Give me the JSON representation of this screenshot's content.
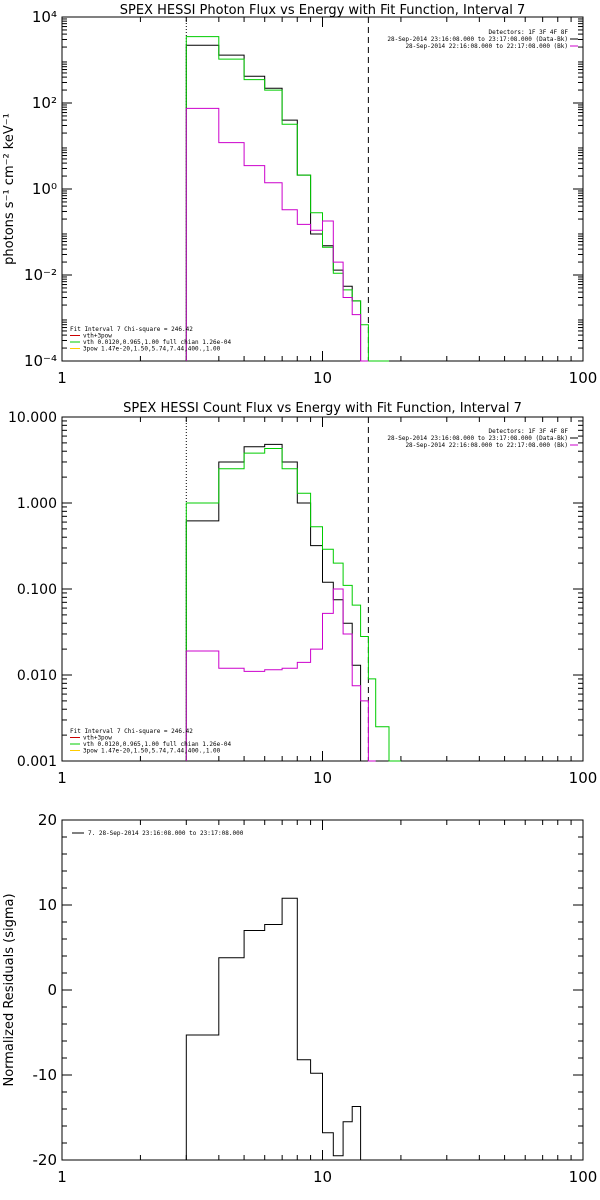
{
  "chart_data": [
    {
      "type": "line",
      "title": "SPEX HESSI Photon Flux vs Energy with Fit Function, Interval 7",
      "ylabel": "photons s⁻¹ cm⁻² keV⁻¹",
      "xlabel": "",
      "x_scale": "log",
      "y_scale": "log",
      "xlim": [
        1,
        100
      ],
      "ylim": [
        0.0001,
        10000
      ],
      "x_ticks": [
        "1",
        "10",
        "100"
      ],
      "y_ticks": [
        "10⁻⁴",
        "10⁻²",
        "10⁰",
        "10²",
        "10⁴"
      ],
      "vlines": [
        {
          "x": 3,
          "style": "dotted"
        },
        {
          "x": 15,
          "style": "dashed"
        }
      ],
      "legend_top": [
        "Detectors: 1F 3F 4F 8F",
        "28-Sep-2014 23:16:08.000 to 23:17:08.000 (Data-Bk)",
        "28-Sep-2014 22:16:08.000 to 22:17:08.000 (Bk)"
      ],
      "legend_top_colors": [
        "",
        "#000000",
        "#cc00cc"
      ],
      "legend_bottom": [
        "Fit Interval 7   Chi-square = 246.42",
        "vth+3pow",
        "vth 0.0120,0.965,1.00  full chian 1.26e-04",
        "3pow 1.47e-20,1.50,5.74,7.44,400.,1.00"
      ],
      "legend_bottom_colors": [
        "",
        "#cc0000",
        "#00cc00",
        "#ffcc00"
      ],
      "edges": [
        3,
        4,
        5,
        6,
        7,
        8,
        9,
        10,
        11,
        12,
        13,
        14,
        15,
        16,
        18
      ],
      "series": [
        {
          "color": "#000000",
          "values": [
            2200,
            1300,
            420,
            220,
            40,
            2.1,
            0.09,
            0.048,
            0.013,
            0.0055,
            0.0025
          ]
        },
        {
          "color": "#00cc00",
          "values": [
            3500,
            1050,
            350,
            200,
            32,
            2.1,
            0.28,
            0.044,
            0.011,
            0.0045,
            0.0025,
            0.0007,
            0.0001,
            0.0001
          ]
        },
        {
          "color": "#cc00cc",
          "values": [
            75,
            12,
            3.5,
            1.4,
            0.33,
            0.15,
            0.11,
            0.18,
            0.02,
            0.003,
            0.0012,
            0.0001
          ]
        }
      ]
    },
    {
      "type": "line",
      "title": "SPEX HESSI Count Flux vs Energy with Fit Function, Interval 7",
      "ylabel": "",
      "xlabel": "",
      "x_scale": "log",
      "y_scale": "log",
      "xlim": [
        1,
        100
      ],
      "ylim": [
        0.001,
        10
      ],
      "x_ticks": [
        "1",
        "10",
        "100"
      ],
      "y_ticks": [
        "0.001",
        "0.010",
        "0.100",
        "1.000",
        "10.000"
      ],
      "vlines": [
        {
          "x": 3,
          "style": "dotted"
        },
        {
          "x": 15,
          "style": "dashed"
        }
      ],
      "legend_top": [
        "Detectors: 1F 3F 4F 8F",
        "28-Sep-2014 23:16:08.000 to 23:17:08.000 (Data-Bk)",
        "28-Sep-2014 22:16:08.000 to 22:17:08.000 (Bk)"
      ],
      "legend_top_colors": [
        "",
        "#000000",
        "#cc00cc"
      ],
      "legend_bottom": [
        "Fit Interval 7   Chi-square = 246.42",
        "vth+3pow",
        "vth 0.0120,0.965,1.00  full chian 1.26e-04",
        "3pow 1.47e-20,1.50,5.74,7.44,400.,1.00"
      ],
      "legend_bottom_colors": [
        "",
        "#cc0000",
        "#00cc00",
        "#ffcc00"
      ],
      "edges": [
        3,
        4,
        5,
        6,
        7,
        8,
        9,
        10,
        11,
        12,
        13,
        14,
        15,
        16,
        18,
        20
      ],
      "series": [
        {
          "color": "#000000",
          "values": [
            0.62,
            3.0,
            4.5,
            4.8,
            3.0,
            1.0,
            0.32,
            0.12,
            0.075,
            0.04,
            0.013
          ]
        },
        {
          "color": "#00cc00",
          "values": [
            1.0,
            2.5,
            3.8,
            4.3,
            2.5,
            1.3,
            0.53,
            0.29,
            0.2,
            0.11,
            0.065,
            0.028,
            0.009,
            0.0025,
            0.001
          ]
        },
        {
          "color": "#cc00cc",
          "values": [
            0.019,
            0.012,
            0.011,
            0.0115,
            0.012,
            0.014,
            0.02,
            0.052,
            0.1,
            0.03,
            0.0075,
            0.005,
            0.001
          ]
        }
      ]
    },
    {
      "type": "line",
      "title": "",
      "ylabel": "Normalized Residuals (sigma)",
      "xlabel": "",
      "x_scale": "log",
      "y_scale": "linear",
      "xlim": [
        1,
        100
      ],
      "ylim": [
        -20,
        20
      ],
      "x_ticks": [
        "1",
        "10",
        "100"
      ],
      "y_ticks": [
        "-20",
        "-10",
        "0",
        "10",
        "20"
      ],
      "legend_top": [
        "7. 28-Sep-2014 23:16:08.000 to 23:17:08.000"
      ],
      "edges": [
        3,
        4,
        5,
        6,
        7,
        8,
        9,
        10,
        11,
        12,
        13,
        14,
        15
      ],
      "series": [
        {
          "color": "#000000",
          "values": [
            -5.3,
            3.8,
            7.0,
            7.7,
            10.8,
            -8.2,
            -9.8,
            -16.8,
            -19.5,
            -15.5,
            -13.7
          ]
        }
      ]
    }
  ]
}
